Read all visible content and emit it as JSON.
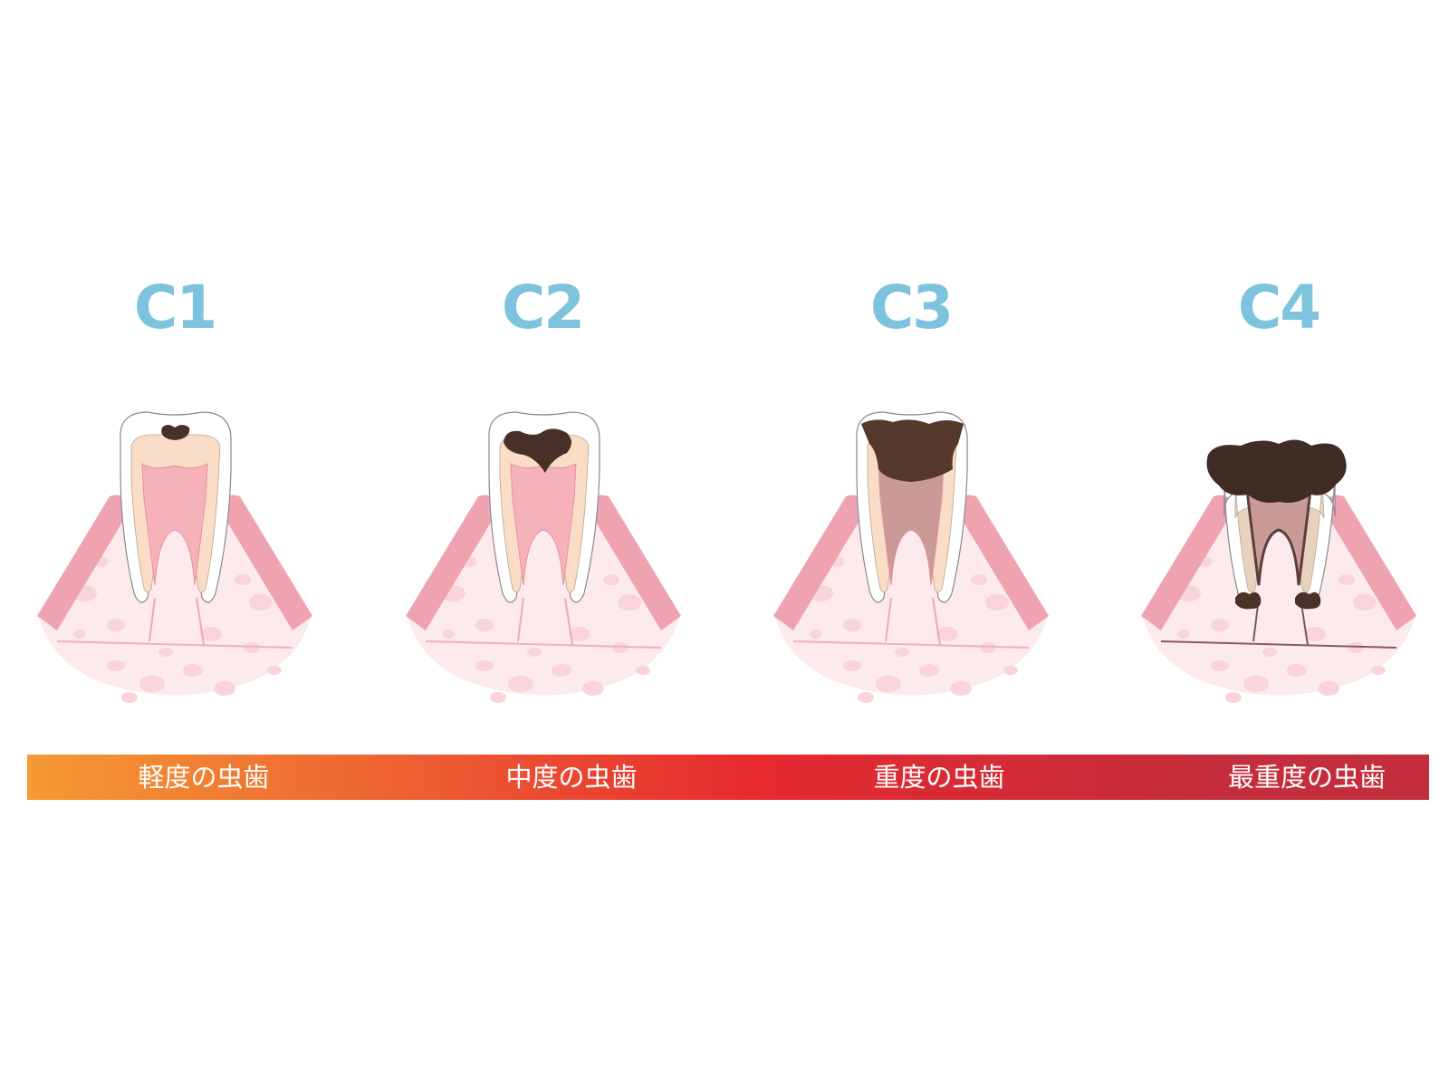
{
  "stages": [
    {
      "label": "C1",
      "severity": "軽度の虫歯"
    },
    {
      "label": "C2",
      "severity": "中度の虫歯"
    },
    {
      "label": "C3",
      "severity": "重度の虫歯"
    },
    {
      "label": "C4",
      "severity": "最重度の虫歯"
    }
  ],
  "colors": {
    "label": "#7ec3dd",
    "gum": "#efa3b0",
    "bone": "#fdeaec",
    "enamel": "#ffffff",
    "dentin": "#f9ddc6",
    "pulp": "#f6b2ba",
    "decay": "#463028",
    "bar_start": "#f59a33",
    "bar_mid": "#e62a30",
    "bar_end": "#c42d3b"
  }
}
